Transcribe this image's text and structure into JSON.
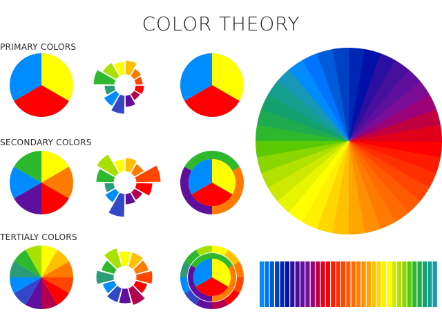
{
  "title": "COLOR THEORY",
  "sections": [
    {
      "label": "PRIMARY COLORS"
    },
    {
      "label": "SECONDARY COLORS"
    },
    {
      "label": "TERTIALY COLORS"
    }
  ],
  "palette": {
    "red": "#ff0000",
    "red_orange": "#ff4500",
    "orange": "#ff7b00",
    "yellow_orange": "#ffc000",
    "yellow": "#ffff00",
    "yellow_green": "#a8e000",
    "green": "#2db82d",
    "blue_green": "#2a9d78",
    "blue": "#008cff",
    "blue_violet": "#3447c8",
    "violet": "#5f0f9e",
    "red_violet": "#b3004d"
  },
  "large_wheel_colors": [
    "#ff0000",
    "#ff1a00",
    "#ff3000",
    "#ff4500",
    "#ff5a00",
    "#ff6b00",
    "#ff7b00",
    "#ff8f00",
    "#ffa500",
    "#ffc000",
    "#ffd700",
    "#ffef00",
    "#ffff00",
    "#e8f500",
    "#cfe800",
    "#b2e100",
    "#8bd600",
    "#5cca00",
    "#2db82d",
    "#1faa4f",
    "#14a06f",
    "#14a08f",
    "#1698b6",
    "#008cff",
    "#0074ff",
    "#005bd8",
    "#0040c4",
    "#0026b3",
    "#0010a8",
    "#2a0fa0",
    "#46109c",
    "#5f0f9e",
    "#7a0d95",
    "#9c0076",
    "#c0003f",
    "#e00018"
  ],
  "color_bar_colors": [
    "#008cff",
    "#0074ff",
    "#005bd8",
    "#0040c4",
    "#0026b3",
    "#0010a8",
    "#2a0fa0",
    "#46109c",
    "#5f0f9e",
    "#7a0d95",
    "#9c0076",
    "#c0003f",
    "#e00018",
    "#ff0000",
    "#ff1a00",
    "#ff3000",
    "#ff4500",
    "#ff5a00",
    "#ff6b00",
    "#ff7b00",
    "#ff8f00",
    "#ffa500",
    "#ffc000",
    "#ffd700",
    "#ffef00",
    "#ffff00",
    "#cfe800",
    "#b2e100",
    "#8bd600",
    "#5cca00",
    "#2db82d",
    "#1faa4f",
    "#14a06f",
    "#14a08f",
    "#1698b6"
  ]
}
